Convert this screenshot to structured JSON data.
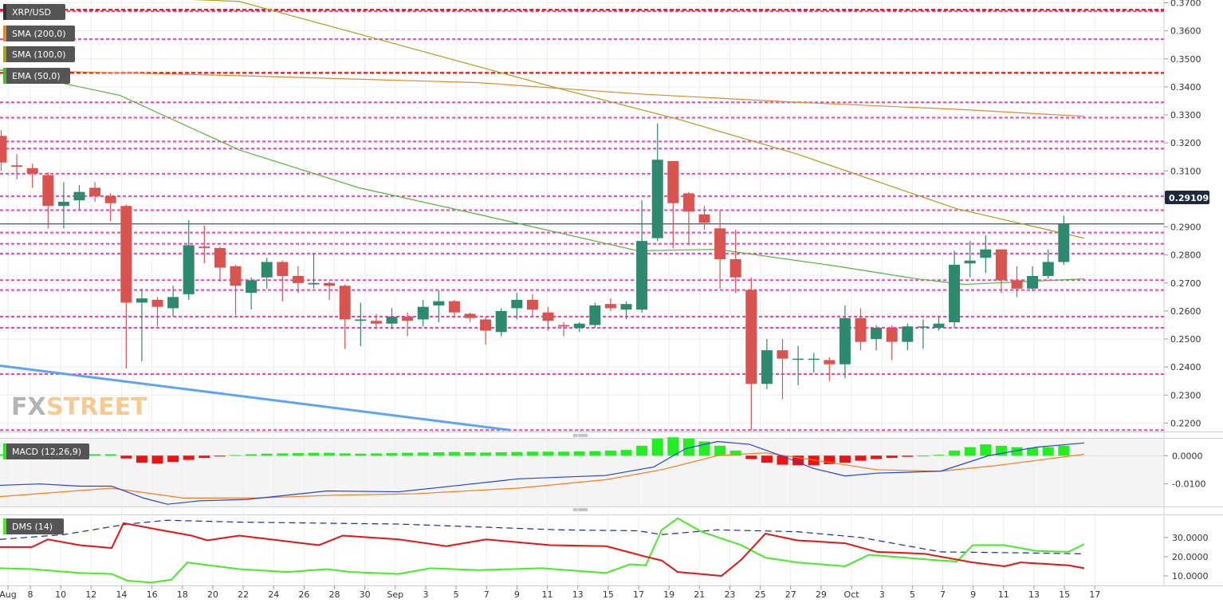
{
  "brand": {
    "left": "FX",
    "right": "STREET"
  },
  "indicators": {
    "symbol": "XRP/USD",
    "sma200": "SMA (200,0)",
    "sma100": "SMA (100,0)",
    "ema50": "EMA (50,0)",
    "macd": "MACD (12,26,9)",
    "dms": "DMS (14)"
  },
  "colors": {
    "up": "#2d8a6e",
    "down": "#d9534f",
    "resistance": "#ff3cb4",
    "resistance_strong": "#e00000",
    "sma200": "#e08a2c",
    "sma100": "#a7a21e",
    "ema50": "#53b63a",
    "trendline": "#5aa6f0",
    "macd_line": "#2244dd",
    "signal_line": "#ff7a1a",
    "hist_pos": "#22ee22",
    "hist_neg": "#ee1111",
    "dmi_plus": "#44ee22",
    "dmi_minus": "#ee1111",
    "adx": "#1a2c99",
    "price_tag": "#1e2a3c"
  },
  "chart_data": [
    {
      "type": "candlestick",
      "title": "XRP/USD",
      "current_price": "0.291095",
      "ylim": [
        0.217,
        0.371
      ],
      "y_ticks": [
        "0.3700",
        "0.3600",
        "0.3500",
        "0.3400",
        "0.3300",
        "0.3200",
        "0.3100",
        "0.3000",
        "0.2900",
        "0.2800",
        "0.2700",
        "0.2600",
        "0.2500",
        "0.2400",
        "0.2300",
        "0.2200"
      ],
      "x_ticks": [
        "Aug",
        "8",
        "10",
        "12",
        "14",
        "16",
        "18",
        "20",
        "22",
        "24",
        "26",
        "28",
        "30",
        "Sep",
        "3",
        "5",
        "7",
        "9",
        "11",
        "13",
        "15",
        "17",
        "19",
        "21",
        "23",
        "25",
        "27",
        "29",
        "Oct",
        "3",
        "5",
        "7",
        "9",
        "11",
        "13",
        "15",
        "17"
      ],
      "candles": [
        {
          "o": 0.3225,
          "h": 0.3245,
          "l": 0.31,
          "c": 0.313
        },
        {
          "o": 0.312,
          "h": 0.316,
          "l": 0.307,
          "c": 0.3115
        },
        {
          "o": 0.311,
          "h": 0.3125,
          "l": 0.304,
          "c": 0.309
        },
        {
          "o": 0.3085,
          "h": 0.3095,
          "l": 0.2895,
          "c": 0.2975
        },
        {
          "o": 0.2975,
          "h": 0.306,
          "l": 0.2895,
          "c": 0.299
        },
        {
          "o": 0.2995,
          "h": 0.305,
          "l": 0.296,
          "c": 0.3025
        },
        {
          "o": 0.304,
          "h": 0.306,
          "l": 0.299,
          "c": 0.301
        },
        {
          "o": 0.301,
          "h": 0.302,
          "l": 0.292,
          "c": 0.2985
        },
        {
          "o": 0.2975,
          "h": 0.298,
          "l": 0.2395,
          "c": 0.263
        },
        {
          "o": 0.263,
          "h": 0.268,
          "l": 0.242,
          "c": 0.2645
        },
        {
          "o": 0.264,
          "h": 0.265,
          "l": 0.2545,
          "c": 0.2615
        },
        {
          "o": 0.261,
          "h": 0.269,
          "l": 0.258,
          "c": 0.265
        },
        {
          "o": 0.266,
          "h": 0.2925,
          "l": 0.264,
          "c": 0.2835
        },
        {
          "o": 0.283,
          "h": 0.2905,
          "l": 0.277,
          "c": 0.2825
        },
        {
          "o": 0.2825,
          "h": 0.283,
          "l": 0.2705,
          "c": 0.2755
        },
        {
          "o": 0.276,
          "h": 0.2765,
          "l": 0.2585,
          "c": 0.269
        },
        {
          "o": 0.2665,
          "h": 0.272,
          "l": 0.2605,
          "c": 0.271
        },
        {
          "o": 0.272,
          "h": 0.279,
          "l": 0.268,
          "c": 0.2775
        },
        {
          "o": 0.2775,
          "h": 0.278,
          "l": 0.2635,
          "c": 0.2725
        },
        {
          "o": 0.2725,
          "h": 0.276,
          "l": 0.2665,
          "c": 0.27
        },
        {
          "o": 0.2695,
          "h": 0.2805,
          "l": 0.268,
          "c": 0.27
        },
        {
          "o": 0.27,
          "h": 0.2705,
          "l": 0.264,
          "c": 0.269
        },
        {
          "o": 0.269,
          "h": 0.2695,
          "l": 0.2465,
          "c": 0.257
        },
        {
          "o": 0.2565,
          "h": 0.263,
          "l": 0.2475,
          "c": 0.257
        },
        {
          "o": 0.2565,
          "h": 0.259,
          "l": 0.2535,
          "c": 0.2555
        },
        {
          "o": 0.2555,
          "h": 0.261,
          "l": 0.2535,
          "c": 0.258
        },
        {
          "o": 0.258,
          "h": 0.2595,
          "l": 0.251,
          "c": 0.2565
        },
        {
          "o": 0.257,
          "h": 0.264,
          "l": 0.2545,
          "c": 0.2615
        },
        {
          "o": 0.262,
          "h": 0.2675,
          "l": 0.256,
          "c": 0.2635
        },
        {
          "o": 0.2635,
          "h": 0.264,
          "l": 0.2575,
          "c": 0.2595
        },
        {
          "o": 0.259,
          "h": 0.2595,
          "l": 0.256,
          "c": 0.2575
        },
        {
          "o": 0.257,
          "h": 0.258,
          "l": 0.248,
          "c": 0.253
        },
        {
          "o": 0.2525,
          "h": 0.261,
          "l": 0.251,
          "c": 0.26
        },
        {
          "o": 0.261,
          "h": 0.2665,
          "l": 0.257,
          "c": 0.264
        },
        {
          "o": 0.264,
          "h": 0.266,
          "l": 0.258,
          "c": 0.2605
        },
        {
          "o": 0.2595,
          "h": 0.2615,
          "l": 0.253,
          "c": 0.2565
        },
        {
          "o": 0.255,
          "h": 0.256,
          "l": 0.251,
          "c": 0.2545
        },
        {
          "o": 0.254,
          "h": 0.256,
          "l": 0.2525,
          "c": 0.2555
        },
        {
          "o": 0.255,
          "h": 0.263,
          "l": 0.254,
          "c": 0.262
        },
        {
          "o": 0.2625,
          "h": 0.2645,
          "l": 0.26,
          "c": 0.261
        },
        {
          "o": 0.2605,
          "h": 0.2635,
          "l": 0.257,
          "c": 0.2625
        },
        {
          "o": 0.2605,
          "h": 0.2995,
          "l": 0.2595,
          "c": 0.285
        },
        {
          "o": 0.286,
          "h": 0.327,
          "l": 0.285,
          "c": 0.314
        },
        {
          "o": 0.3135,
          "h": 0.3135,
          "l": 0.2825,
          "c": 0.2985
        },
        {
          "o": 0.302,
          "h": 0.3025,
          "l": 0.2835,
          "c": 0.2955
        },
        {
          "o": 0.2945,
          "h": 0.2975,
          "l": 0.289,
          "c": 0.2915
        },
        {
          "o": 0.2895,
          "h": 0.296,
          "l": 0.268,
          "c": 0.2785
        },
        {
          "o": 0.2785,
          "h": 0.289,
          "l": 0.2665,
          "c": 0.272
        },
        {
          "o": 0.2675,
          "h": 0.272,
          "l": 0.2175,
          "c": 0.234
        },
        {
          "o": 0.234,
          "h": 0.25,
          "l": 0.232,
          "c": 0.246
        },
        {
          "o": 0.246,
          "h": 0.25,
          "l": 0.2285,
          "c": 0.243
        },
        {
          "o": 0.243,
          "h": 0.2475,
          "l": 0.2335,
          "c": 0.243
        },
        {
          "o": 0.243,
          "h": 0.245,
          "l": 0.238,
          "c": 0.243
        },
        {
          "o": 0.2425,
          "h": 0.2435,
          "l": 0.235,
          "c": 0.241
        },
        {
          "o": 0.241,
          "h": 0.262,
          "l": 0.236,
          "c": 0.2575
        },
        {
          "o": 0.2575,
          "h": 0.261,
          "l": 0.246,
          "c": 0.249
        },
        {
          "o": 0.25,
          "h": 0.255,
          "l": 0.246,
          "c": 0.254
        },
        {
          "o": 0.254,
          "h": 0.255,
          "l": 0.2425,
          "c": 0.249
        },
        {
          "o": 0.249,
          "h": 0.2555,
          "l": 0.246,
          "c": 0.2545
        },
        {
          "o": 0.2545,
          "h": 0.257,
          "l": 0.2465,
          "c": 0.2545
        },
        {
          "o": 0.254,
          "h": 0.258,
          "l": 0.253,
          "c": 0.2555
        },
        {
          "o": 0.256,
          "h": 0.2815,
          "l": 0.254,
          "c": 0.2765
        },
        {
          "o": 0.277,
          "h": 0.285,
          "l": 0.272,
          "c": 0.278
        },
        {
          "o": 0.279,
          "h": 0.287,
          "l": 0.2735,
          "c": 0.282
        },
        {
          "o": 0.282,
          "h": 0.282,
          "l": 0.2665,
          "c": 0.271
        },
        {
          "o": 0.271,
          "h": 0.276,
          "l": 0.265,
          "c": 0.268
        },
        {
          "o": 0.268,
          "h": 0.276,
          "l": 0.267,
          "c": 0.2725
        },
        {
          "o": 0.2725,
          "h": 0.282,
          "l": 0.2715,
          "c": 0.2775
        },
        {
          "o": 0.2775,
          "h": 0.294,
          "l": 0.2765,
          "c": 0.291
        }
      ],
      "resistance_levels": [
        0.2175,
        0.2375,
        0.254,
        0.258,
        0.2675,
        0.271,
        0.2805,
        0.284,
        0.288,
        0.296,
        0.301,
        0.309,
        0.318,
        0.3205,
        0.329,
        0.3345,
        0.357,
        0.367
      ],
      "strong_levels": [
        0.345,
        0.3675
      ],
      "sma200": [
        [
          0,
          0.346
        ],
        [
          300,
          0.344
        ],
        [
          600,
          0.3415
        ],
        [
          800,
          0.3375
        ],
        [
          1000,
          0.3345
        ],
        [
          1200,
          0.332
        ],
        [
          1360,
          0.3295
        ]
      ],
      "sma100": [
        [
          0,
          0.3725
        ],
        [
          120,
          0.3725
        ],
        [
          300,
          0.3705
        ],
        [
          500,
          0.355
        ],
        [
          700,
          0.3395
        ],
        [
          850,
          0.3285
        ],
        [
          1000,
          0.316
        ],
        [
          1200,
          0.2965
        ],
        [
          1360,
          0.286
        ]
      ],
      "ema50": [
        [
          0,
          0.346
        ],
        [
          150,
          0.337
        ],
        [
          300,
          0.3175
        ],
        [
          450,
          0.304
        ],
        [
          600,
          0.2945
        ],
        [
          800,
          0.2815
        ],
        [
          900,
          0.282
        ],
        [
          950,
          0.28
        ],
        [
          1050,
          0.276
        ],
        [
          1150,
          0.2715
        ],
        [
          1210,
          0.2695
        ],
        [
          1360,
          0.2715
        ]
      ],
      "trendline": [
        [
          0,
          0.2405
        ],
        [
          640,
          0.2175
        ]
      ]
    },
    {
      "type": "bar",
      "title": "MACD (12,26,9)",
      "ylim": [
        -0.018,
        0.006
      ],
      "y_ticks": [
        "0.0000",
        "-0.0100"
      ],
      "histogram": [
        0.0005,
        0.0005,
        0.0005,
        0.0005,
        0.0005,
        0.0005,
        0.0005,
        0.0005,
        -0.001,
        -0.0025,
        -0.0028,
        -0.0022,
        -0.0015,
        -0.0008,
        -0.0003,
        0.0002,
        0.0005,
        0.0007,
        0.0008,
        0.0009,
        0.001,
        0.001,
        0.0008,
        0.0007,
        0.0008,
        0.0009,
        0.001,
        0.0011,
        0.0012,
        0.0013,
        0.0012,
        0.0011,
        0.0012,
        0.0013,
        0.0014,
        0.0014,
        0.0014,
        0.0015,
        0.0016,
        0.0018,
        0.002,
        0.0035,
        0.006,
        0.0065,
        0.006,
        0.005,
        0.0035,
        0.0018,
        -0.0012,
        -0.0025,
        -0.0032,
        -0.0034,
        -0.0034,
        -0.003,
        -0.0025,
        -0.0018,
        -0.0012,
        -0.0008,
        -0.0004,
        0.0,
        0.0003,
        0.0018,
        0.003,
        0.004,
        0.0035,
        0.003,
        0.0028,
        0.003,
        0.0035
      ],
      "macd_line": [
        [
          0,
          -0.0105
        ],
        [
          50,
          -0.01
        ],
        [
          100,
          -0.0108
        ],
        [
          140,
          -0.0108
        ],
        [
          180,
          -0.015
        ],
        [
          210,
          -0.0172
        ],
        [
          250,
          -0.016
        ],
        [
          310,
          -0.0155
        ],
        [
          410,
          -0.0125
        ],
        [
          500,
          -0.0128
        ],
        [
          560,
          -0.011
        ],
        [
          650,
          -0.0082
        ],
        [
          760,
          -0.007
        ],
        [
          820,
          -0.004
        ],
        [
          860,
          0.0025
        ],
        [
          900,
          0.005
        ],
        [
          940,
          0.004
        ],
        [
          980,
          0.0
        ],
        [
          1020,
          -0.0045
        ],
        [
          1060,
          -0.0072
        ],
        [
          1100,
          -0.0062
        ],
        [
          1180,
          -0.0055
        ],
        [
          1240,
          0.0
        ],
        [
          1300,
          0.003
        ],
        [
          1360,
          0.0045
        ]
      ],
      "signal_line": [
        [
          0,
          -0.0145
        ],
        [
          140,
          -0.0115
        ],
        [
          230,
          -0.015
        ],
        [
          320,
          -0.015
        ],
        [
          420,
          -0.014
        ],
        [
          520,
          -0.0135
        ],
        [
          650,
          -0.0115
        ],
        [
          760,
          -0.0085
        ],
        [
          830,
          -0.005
        ],
        [
          900,
          0.0
        ],
        [
          960,
          0.001
        ],
        [
          1020,
          -0.0015
        ],
        [
          1100,
          -0.005
        ],
        [
          1180,
          -0.0055
        ],
        [
          1250,
          -0.0035
        ],
        [
          1360,
          0.0005
        ]
      ]
    },
    {
      "type": "line",
      "title": "DMS (14)",
      "ylim": [
        5,
        42
      ],
      "y_ticks": [
        "30.0000",
        "20.0000",
        "10.0000"
      ],
      "dmi_plus": [
        [
          0,
          14
        ],
        [
          40,
          13.5
        ],
        [
          100,
          11.5
        ],
        [
          140,
          11
        ],
        [
          160,
          7.5
        ],
        [
          190,
          6.5
        ],
        [
          215,
          8
        ],
        [
          235,
          17
        ],
        [
          300,
          13.5
        ],
        [
          360,
          12
        ],
        [
          410,
          13.5
        ],
        [
          440,
          12
        ],
        [
          500,
          11
        ],
        [
          540,
          14
        ],
        [
          600,
          13
        ],
        [
          680,
          14
        ],
        [
          760,
          11.5
        ],
        [
          790,
          16
        ],
        [
          810,
          15.5
        ],
        [
          830,
          34
        ],
        [
          850,
          40
        ],
        [
          880,
          33
        ],
        [
          930,
          26
        ],
        [
          960,
          19.5
        ],
        [
          1000,
          17
        ],
        [
          1060,
          15
        ],
        [
          1090,
          21
        ],
        [
          1180,
          18
        ],
        [
          1200,
          17.5
        ],
        [
          1220,
          26
        ],
        [
          1260,
          26
        ],
        [
          1300,
          23
        ],
        [
          1340,
          22.5
        ],
        [
          1360,
          26.5
        ]
      ],
      "dmi_minus": [
        [
          0,
          25
        ],
        [
          40,
          25
        ],
        [
          60,
          29
        ],
        [
          100,
          26
        ],
        [
          140,
          24.5
        ],
        [
          155,
          37.5
        ],
        [
          200,
          34
        ],
        [
          240,
          31
        ],
        [
          260,
          28.5
        ],
        [
          300,
          31
        ],
        [
          340,
          29
        ],
        [
          400,
          26
        ],
        [
          430,
          31
        ],
        [
          500,
          29
        ],
        [
          560,
          25.5
        ],
        [
          610,
          29
        ],
        [
          690,
          26
        ],
        [
          760,
          25.5
        ],
        [
          810,
          20
        ],
        [
          830,
          18
        ],
        [
          850,
          12
        ],
        [
          905,
          10
        ],
        [
          930,
          18.5
        ],
        [
          960,
          32
        ],
        [
          1000,
          28.5
        ],
        [
          1060,
          27
        ],
        [
          1100,
          22.5
        ],
        [
          1160,
          21.5
        ],
        [
          1220,
          17
        ],
        [
          1260,
          15
        ],
        [
          1280,
          17
        ],
        [
          1340,
          15.5
        ],
        [
          1360,
          14
        ]
      ],
      "adx": [
        [
          0,
          29
        ],
        [
          80,
          31.5
        ],
        [
          160,
          37
        ],
        [
          210,
          39
        ],
        [
          300,
          38
        ],
        [
          500,
          37
        ],
        [
          700,
          34
        ],
        [
          800,
          33.5
        ],
        [
          830,
          31.5
        ],
        [
          900,
          34
        ],
        [
          1000,
          33
        ],
        [
          1080,
          30
        ],
        [
          1180,
          22.5
        ],
        [
          1280,
          22
        ],
        [
          1360,
          21.5
        ]
      ]
    }
  ]
}
